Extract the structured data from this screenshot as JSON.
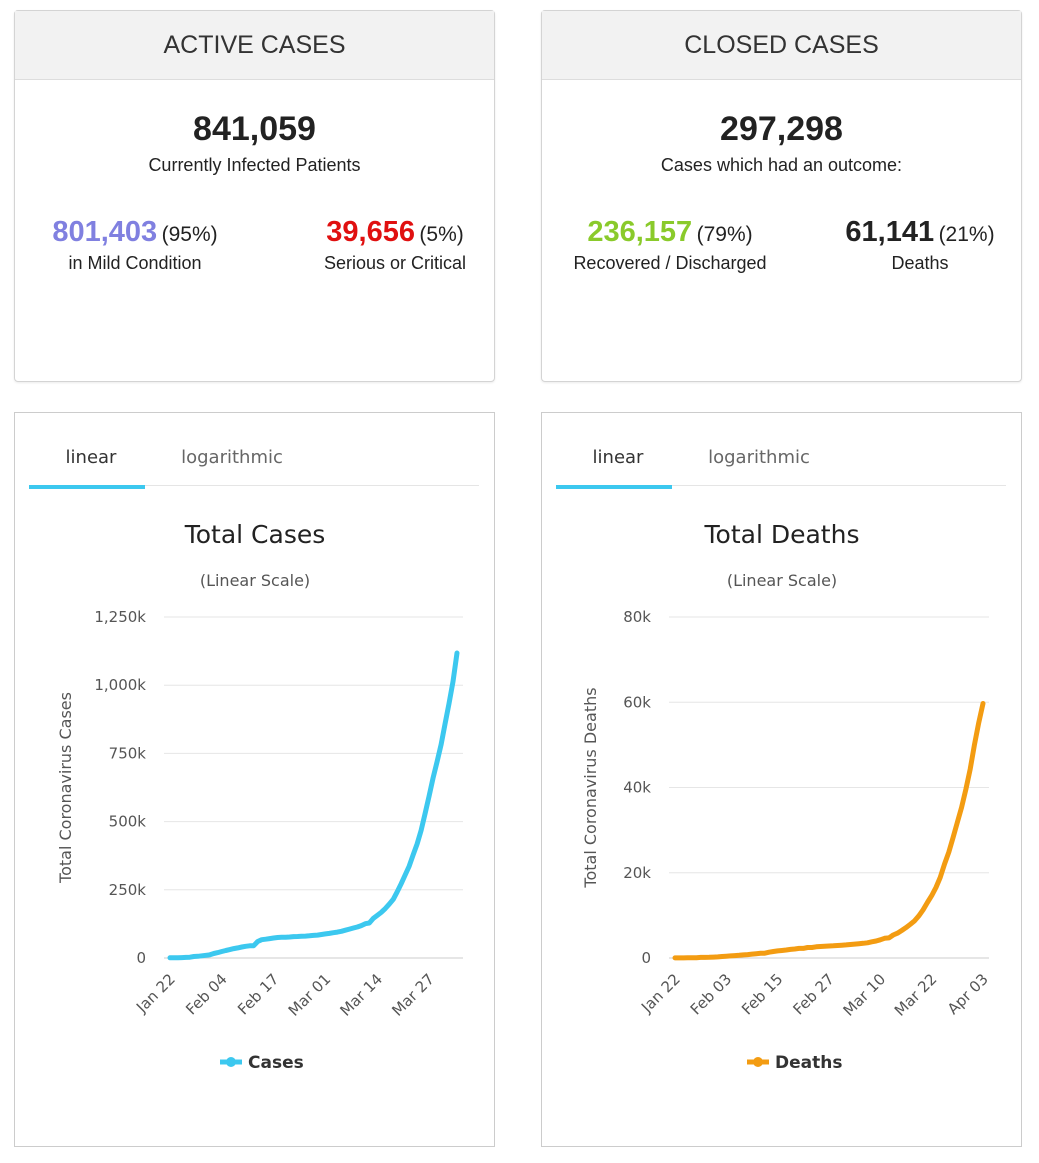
{
  "active_cases": {
    "header": "ACTIVE CASES",
    "total": "841,059",
    "total_label": "Currently Infected Patients",
    "left": {
      "value": "801,403",
      "pct": "(95%)",
      "label": "in Mild Condition"
    },
    "right": {
      "value": "39,656",
      "pct": "(5%)",
      "label": "Serious or Critical"
    }
  },
  "closed_cases": {
    "header": "CLOSED CASES",
    "total": "297,298",
    "total_label": "Cases which had an outcome:",
    "left": {
      "value": "236,157",
      "pct": "(79%)",
      "label": "Recovered / Discharged"
    },
    "right": {
      "value": "61,141",
      "pct": "(21%)",
      "label": "Deaths"
    }
  },
  "chart_data": [
    {
      "type": "line",
      "tabs": [
        "linear",
        "logarithmic"
      ],
      "title": "Total Cases",
      "subtitle": "(Linear Scale)",
      "y_label": "Total Coronavirus Cases",
      "categories": [
        "Jan 22",
        null,
        null,
        null,
        null,
        null,
        null,
        null,
        null,
        null,
        null,
        null,
        null,
        "Feb 04",
        null,
        null,
        null,
        null,
        null,
        null,
        null,
        null,
        null,
        null,
        null,
        null,
        "Feb 17",
        null,
        null,
        null,
        null,
        null,
        null,
        null,
        null,
        null,
        null,
        null,
        null,
        "Mar 01",
        null,
        null,
        null,
        null,
        null,
        null,
        null,
        null,
        null,
        null,
        null,
        null,
        "Mar 14",
        null,
        null,
        null,
        null,
        null,
        null,
        null,
        null,
        null,
        null,
        null,
        null,
        "Mar 27",
        null,
        null,
        null,
        null,
        null,
        null,
        null
      ],
      "series": [
        {
          "name": "Cases",
          "color": "#3cc8ef",
          "values": [
            600,
            600,
            900,
            1400,
            2100,
            2800,
            5600,
            6100,
            8200,
            9800,
            11900,
            16600,
            19700,
            23700,
            27600,
            30800,
            34400,
            37100,
            40200,
            42800,
            44800,
            45200,
            60400,
            66900,
            69000,
            71200,
            73300,
            75200,
            75700,
            76200,
            76800,
            78600,
            78900,
            79400,
            80400,
            81400,
            82700,
            84100,
            86000,
            88400,
            90300,
            92800,
            95100,
            97900,
            101800,
            105800,
            109800,
            113600,
            118600,
            125900,
            128300,
            145200,
            156100,
            167500,
            181500,
            197100,
            214900,
            242700,
            272200,
            304500,
            337000,
            378800,
            418000,
            467600,
            529600,
            593300,
            660700,
            720100,
            782400,
            857500,
            932600,
            1013200,
            1118000
          ]
        }
      ],
      "ylim": [
        0,
        1250000
      ],
      "yticks": [
        0,
        {
          "value": 250000,
          "label": "250k"
        },
        {
          "value": 500000,
          "label": "500k"
        },
        {
          "value": 750000,
          "label": "750k"
        },
        {
          "value": 1000000,
          "label": "1,000k"
        },
        {
          "value": 1250000,
          "label": "1,250k"
        }
      ],
      "grid": true
    },
    {
      "type": "line",
      "tabs": [
        "linear",
        "logarithmic"
      ],
      "title": "Total Deaths",
      "subtitle": "(Linear Scale)",
      "y_label": "Total Coronavirus Deaths",
      "categories": [
        "Jan 22",
        null,
        null,
        null,
        null,
        null,
        null,
        null,
        null,
        null,
        null,
        null,
        "Feb 03",
        null,
        null,
        null,
        null,
        null,
        null,
        null,
        null,
        null,
        null,
        null,
        "Feb 15",
        null,
        null,
        null,
        null,
        null,
        null,
        null,
        null,
        null,
        null,
        null,
        "Feb 27",
        null,
        null,
        null,
        null,
        null,
        null,
        null,
        null,
        null,
        null,
        null,
        "Mar 10",
        null,
        null,
        null,
        null,
        null,
        null,
        null,
        null,
        null,
        null,
        null,
        "Mar 22",
        null,
        null,
        null,
        null,
        null,
        null,
        null,
        null,
        null,
        null,
        null,
        "Apr 03"
      ],
      "series": [
        {
          "name": "Deaths",
          "color": "#f39c12",
          "values": [
            17,
            18,
            26,
            42,
            56,
            82,
            131,
            133,
            171,
            213,
            259,
            362,
            426,
            492,
            564,
            634,
            719,
            806,
            906,
            1013,
            1113,
            1118,
            1371,
            1523,
            1666,
            1770,
            1868,
            2007,
            2122,
            2247,
            2251,
            2458,
            2469,
            2629,
            2708,
            2770,
            2814,
            2872,
            2941,
            2996,
            3085,
            3160,
            3254,
            3348,
            3460,
            3558,
            3802,
            3988,
            4262,
            4615,
            4720,
            5404,
            5819,
            6440,
            7126,
            7905,
            8733,
            9867,
            11299,
            13011,
            14641,
            16505,
            18895,
            22019,
            24812,
            28289,
            31795,
            35347,
            39599,
            44326,
            49974,
            55145,
            59700
          ]
        }
      ],
      "ylim": [
        0,
        80000
      ],
      "yticks": [
        0,
        {
          "value": 20000,
          "label": "20k"
        },
        {
          "value": 40000,
          "label": "40k"
        },
        {
          "value": 60000,
          "label": "60k"
        },
        {
          "value": 80000,
          "label": "80k"
        }
      ],
      "grid": true
    }
  ]
}
